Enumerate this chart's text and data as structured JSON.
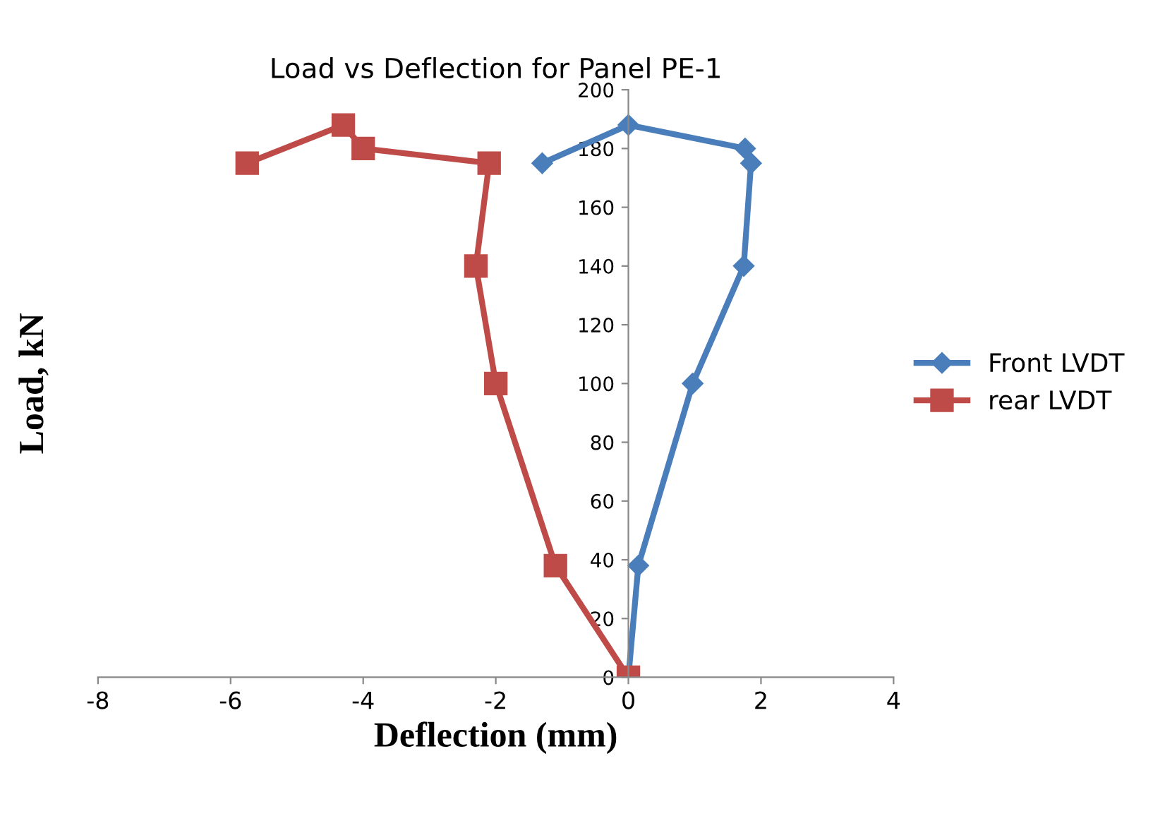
{
  "chart_data": {
    "type": "line",
    "title": "Load vs Deflection for Panel PE-1",
    "xlabel": "Deflection (mm)",
    "ylabel": "Load, kN",
    "series": [
      {
        "name": "Front LVDT",
        "color": "#4a7ebb",
        "marker": "diamond",
        "x": [
          0,
          0.15,
          0.97,
          1.74,
          1.85,
          1.76,
          0,
          -1.3
        ],
        "values": [
          0,
          38,
          100,
          140,
          175,
          180,
          188,
          175
        ]
      },
      {
        "name": "rear LVDT",
        "color": "#be4b48",
        "marker": "square",
        "x": [
          0,
          -1.1,
          -2.0,
          -2.3,
          -2.1,
          -4.0,
          -4.3,
          -5.75
        ],
        "values": [
          0,
          38,
          100,
          140,
          175,
          180,
          188,
          175
        ]
      }
    ],
    "xlim": [
      -8,
      4
    ],
    "xticks": [
      -8,
      -6,
      -4,
      -2,
      0,
      2,
      4
    ],
    "ylim": [
      0,
      200
    ],
    "yticks": [
      0,
      20,
      40,
      60,
      80,
      100,
      120,
      140,
      160,
      180,
      200
    ],
    "grid": false,
    "legend": "right",
    "line_style": "solid"
  }
}
